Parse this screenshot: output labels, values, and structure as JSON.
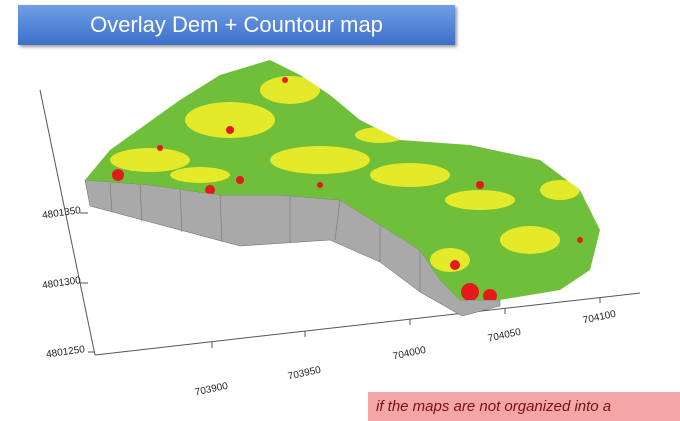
{
  "header": {
    "title": "Overlay Dem + Countour map"
  },
  "axes": {
    "y_labels": [
      "4801350",
      "4801300",
      "4801250"
    ],
    "x_labels": [
      "703900",
      "703950",
      "704000",
      "704050",
      "704100"
    ]
  },
  "note": {
    "text": "if the maps are not organized into a"
  }
}
